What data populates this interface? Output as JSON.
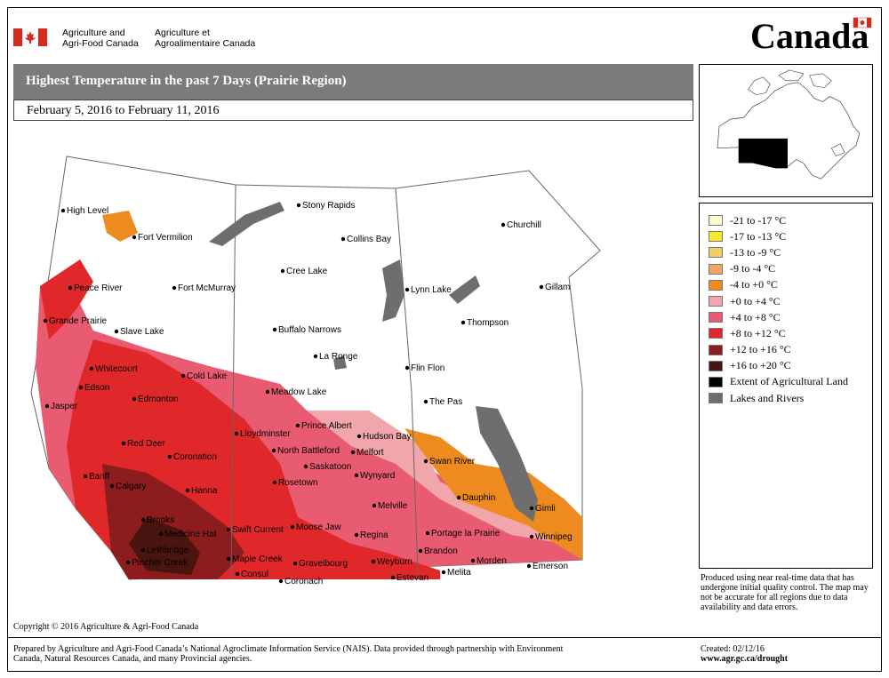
{
  "header": {
    "dept_en_line1": "Agriculture and",
    "dept_en_line2": "Agri-Food Canada",
    "dept_fr_line1": "Agriculture et",
    "dept_fr_line2": "Agroalimentaire Canada",
    "wordmark": "Canada"
  },
  "map_title": "Highest Temperature in the past 7 Days (Prairie Region)",
  "date_range": "February 5, 2016 to February 11, 2016",
  "legend": [
    {
      "label": "-21 to -17 °C",
      "color": "#fdfcd0"
    },
    {
      "label": "-17 to -13 °C",
      "color": "#f4ea2b"
    },
    {
      "label": "-13 to -9 °C",
      "color": "#f3cd66"
    },
    {
      "label": "-9 to -4 °C",
      "color": "#eda668"
    },
    {
      "label": "-4 to +0 °C",
      "color": "#ee8b1f"
    },
    {
      "label": "+0 to +4 °C",
      "color": "#f0a6ab"
    },
    {
      "label": "+4 to +8 °C",
      "color": "#e85b70"
    },
    {
      "label": "+8 to +12 °C",
      "color": "#e0282a"
    },
    {
      "label": "+12 to +16 °C",
      "color": "#8c1c1e"
    },
    {
      "label": "+16 to +20 °C",
      "color": "#4a1410"
    },
    {
      "label": "Extent of Agricultural Land",
      "color": "#000000"
    },
    {
      "label": "Lakes and Rivers",
      "color": "#6e6e6e"
    }
  ],
  "cities": [
    {
      "name": "High Level"
    },
    {
      "name": "Fort Vermilion"
    },
    {
      "name": "Peace River"
    },
    {
      "name": "Fort McMurray"
    },
    {
      "name": "Grande Prairie"
    },
    {
      "name": "Slave Lake"
    },
    {
      "name": "Whitecourt"
    },
    {
      "name": "Cold Lake"
    },
    {
      "name": "Edson"
    },
    {
      "name": "Edmonton"
    },
    {
      "name": "Jasper"
    },
    {
      "name": "Meadow Lake"
    },
    {
      "name": "Lloydminster"
    },
    {
      "name": "Red Deer"
    },
    {
      "name": "Coronation"
    },
    {
      "name": "Banff"
    },
    {
      "name": "Calgary"
    },
    {
      "name": "Hanna"
    },
    {
      "name": "Brooks"
    },
    {
      "name": "Medicine Hat"
    },
    {
      "name": "Lethbridge"
    },
    {
      "name": "Pincher Creek"
    },
    {
      "name": "Stony Rapids"
    },
    {
      "name": "Collins Bay"
    },
    {
      "name": "Cree Lake"
    },
    {
      "name": "Buffalo Narrows"
    },
    {
      "name": "La Ronge"
    },
    {
      "name": "Prince Albert"
    },
    {
      "name": "North Battleford"
    },
    {
      "name": "Saskatoon"
    },
    {
      "name": "Rosetown"
    },
    {
      "name": "Hudson Bay"
    },
    {
      "name": "Melfort"
    },
    {
      "name": "Wynyard"
    },
    {
      "name": "Melville"
    },
    {
      "name": "Swift Current"
    },
    {
      "name": "Moose Jaw"
    },
    {
      "name": "Regina"
    },
    {
      "name": "Maple Creek"
    },
    {
      "name": "Gravelbourg"
    },
    {
      "name": "Consul"
    },
    {
      "name": "Coronach"
    },
    {
      "name": "Weyburn"
    },
    {
      "name": "Estevan"
    },
    {
      "name": "Churchill"
    },
    {
      "name": "Lynn Lake"
    },
    {
      "name": "Gillam"
    },
    {
      "name": "Thompson"
    },
    {
      "name": "Flin Flon"
    },
    {
      "name": "The Pas"
    },
    {
      "name": "Swan River"
    },
    {
      "name": "Dauphin"
    },
    {
      "name": "Gimli"
    },
    {
      "name": "Portage la Prairie"
    },
    {
      "name": "Winnipeg"
    },
    {
      "name": "Brandon"
    },
    {
      "name": "Morden"
    },
    {
      "name": "Melita"
    },
    {
      "name": "Emerson"
    }
  ],
  "note": "Produced using near real-time data that has undergone initial quality control.  The map may not be accurate for all regions due to data availability and data errors.",
  "copyright": "Copyright © 2016 Agriculture & Agri-Food Canada",
  "prepared_by": "Prepared by Agriculture and Agri-Food Canada’s National Agroclimate Information Service (NAIS).   Data provided through partnership with Environment Canada, Natural Resources Canada, and many Provincial agencies.",
  "created": "Created: 02/12/16",
  "url": "www.agr.gc.ca/drought"
}
